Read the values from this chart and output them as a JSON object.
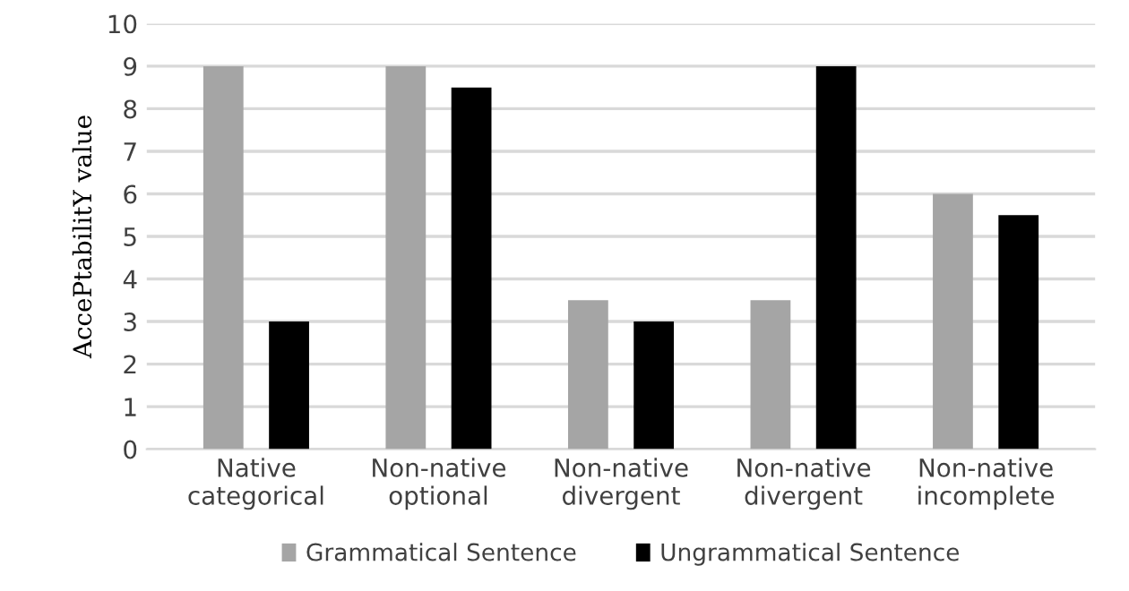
{
  "chart_data": {
    "type": "bar",
    "ylabel": "AccePtabilitY value",
    "categories": [
      "Native\ncategorical",
      "Non-native\noptional",
      "Non-native\ndivergent",
      "Non-native\ndivergent",
      "Non-native\nincomplete"
    ],
    "series": [
      {
        "name": "Grammatical Sentence",
        "color": "#a5a5a5",
        "values": [
          9,
          9,
          3.5,
          3.5,
          6
        ]
      },
      {
        "name": "Ungrammatical Sentence",
        "color": "#000000",
        "values": [
          3,
          8.5,
          3,
          9,
          5.5
        ]
      }
    ],
    "ylim": [
      0,
      10
    ],
    "yticks": [
      0,
      1,
      2,
      3,
      4,
      5,
      6,
      7,
      8,
      9,
      10
    ],
    "grid": "y",
    "legend": "bottom"
  }
}
